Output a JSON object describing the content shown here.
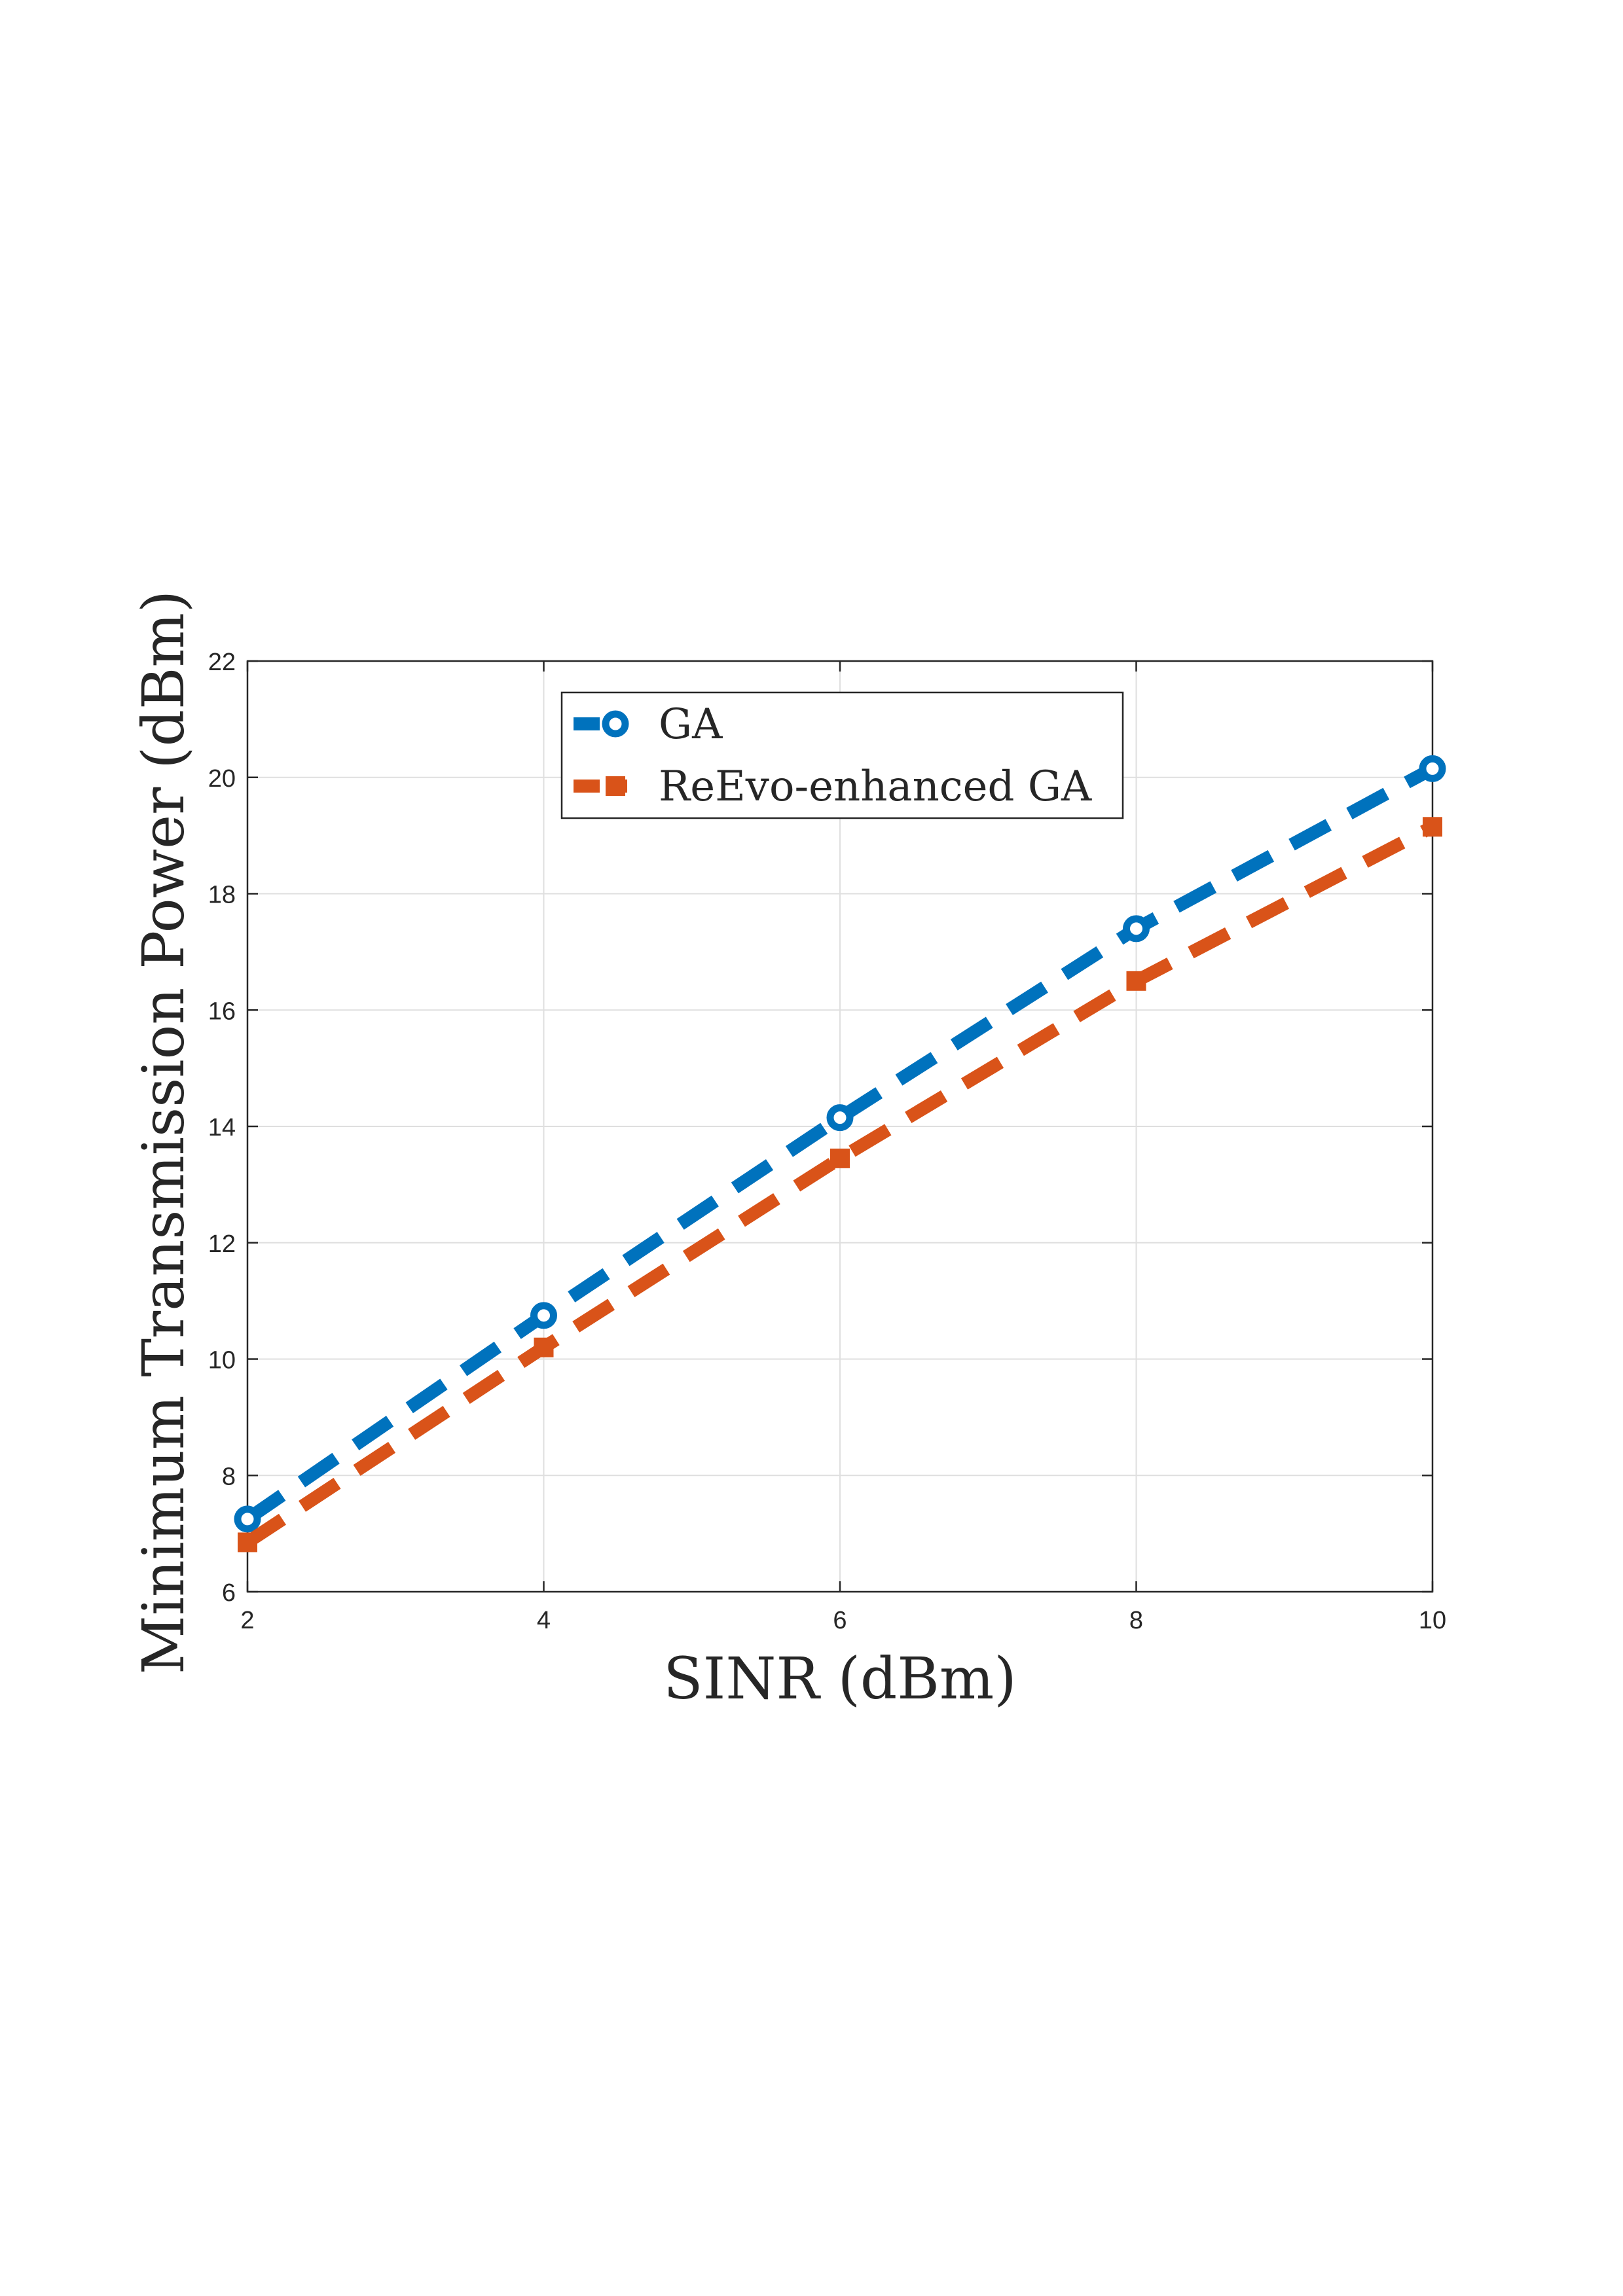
{
  "chart_data": {
    "type": "line",
    "title": "",
    "xlabel": "SINR (dBm)",
    "ylabel": "Minimum Transmission Power (dBm)",
    "x": [
      2,
      4,
      6,
      8,
      10
    ],
    "xlim": [
      2,
      10
    ],
    "ylim": [
      6,
      22
    ],
    "xticks": [
      2,
      4,
      6,
      8,
      10
    ],
    "yticks": [
      6,
      8,
      10,
      12,
      14,
      16,
      18,
      20,
      22
    ],
    "grid": true,
    "legend_position": "top-center",
    "series": [
      {
        "name": "GA",
        "values": [
          7.25,
          10.75,
          14.15,
          17.4,
          20.15
        ],
        "color": "#0072BD",
        "marker": "circle",
        "line_style": "dashed"
      },
      {
        "name": "ReEvo-enhanced GA",
        "values": [
          6.85,
          10.2,
          13.45,
          16.5,
          19.15
        ],
        "color": "#D95319",
        "marker": "square",
        "line_style": "dashed"
      }
    ]
  }
}
